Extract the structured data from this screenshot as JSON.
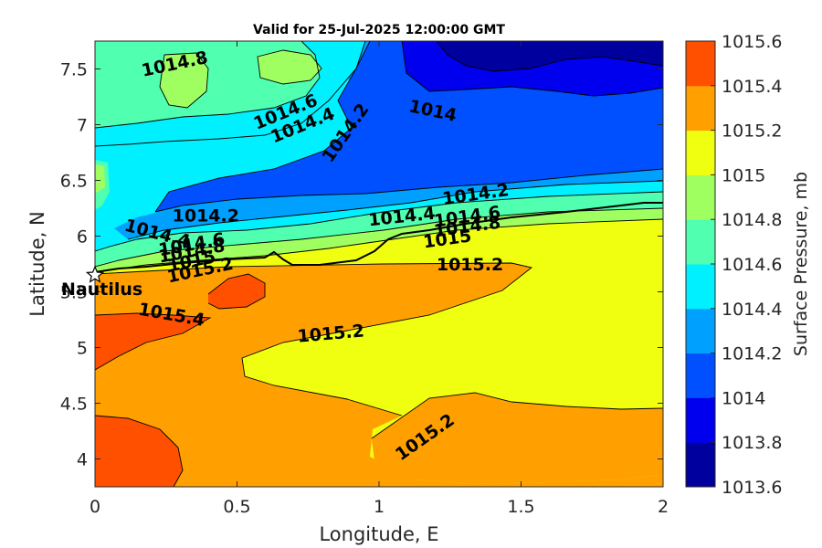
{
  "chart_data": {
    "type": "contour",
    "title": "Valid for 25-Jul-2025 12:00:00 GMT",
    "xlabel": "Longitude, E",
    "ylabel": "Latitude, N",
    "xlim": [
      0,
      2
    ],
    "ylim": [
      3.75,
      7.75
    ],
    "x_ticks": [
      "0",
      "0.5",
      "1",
      "1.5",
      "2"
    ],
    "y_ticks": [
      "4",
      "4.5",
      "5",
      "5.5",
      "6",
      "6.5",
      "7",
      "7.5"
    ],
    "colorbar": {
      "label": "Surface Pressure, mb",
      "levels": [
        1013.6,
        1013.8,
        1014,
        1014.2,
        1014.4,
        1014.6,
        1014.8,
        1015,
        1015.2,
        1015.4,
        1015.6
      ],
      "tick_labels": [
        "1013.6",
        "1013.8",
        "1014",
        "1014.2",
        "1014.4",
        "1014.6",
        "1014.8",
        "1015",
        "1015.2",
        "1015.4",
        "1015.6"
      ],
      "colors": [
        "#00009f",
        "#0000ef",
        "#0050ff",
        "#00a0ff",
        "#00f0ff",
        "#50ffaf",
        "#a0ff60",
        "#f0ff0f",
        "#ffa000",
        "#ff5000",
        "#ff0000"
      ]
    },
    "contour_labels": [
      {
        "text": "1014.8",
        "lon": 0.28,
        "lat": 7.55
      },
      {
        "text": "1014.6",
        "lon": 0.67,
        "lat": 7.12
      },
      {
        "text": "1014.4",
        "lon": 0.73,
        "lat": 7.0
      },
      {
        "text": "1014.2",
        "lon": 0.88,
        "lat": 6.93
      },
      {
        "text": "1014",
        "lon": 1.19,
        "lat": 7.13
      },
      {
        "text": "1014.2",
        "lon": 1.34,
        "lat": 6.38
      },
      {
        "text": "1014.2",
        "lon": 0.39,
        "lat": 6.19
      },
      {
        "text": "1014.4",
        "lon": 1.08,
        "lat": 6.18
      },
      {
        "text": "1014.6",
        "lon": 1.31,
        "lat": 6.18
      },
      {
        "text": "1014.8",
        "lon": 1.31,
        "lat": 6.09
      },
      {
        "text": "1015",
        "lon": 1.24,
        "lat": 5.98
      },
      {
        "text": "1015.2",
        "lon": 1.32,
        "lat": 5.75
      },
      {
        "text": "1014.4",
        "lon": 0.22,
        "lat": 6.03
      },
      {
        "text": "1014.6",
        "lon": 0.34,
        "lat": 5.93
      },
      {
        "text": "1014.8",
        "lon": 0.34,
        "lat": 5.87
      },
      {
        "text": "1015",
        "lon": 0.34,
        "lat": 5.78
      },
      {
        "text": "1015.2",
        "lon": 0.37,
        "lat": 5.7
      },
      {
        "text": "1015.4",
        "lon": 0.27,
        "lat": 5.3
      },
      {
        "text": "1015.2",
        "lon": 0.83,
        "lat": 5.13
      },
      {
        "text": "1015.2",
        "lon": 1.16,
        "lat": 4.2
      }
    ],
    "station": {
      "name": "Nautilus",
      "lon": 0.0,
      "lat": 5.65
    }
  }
}
